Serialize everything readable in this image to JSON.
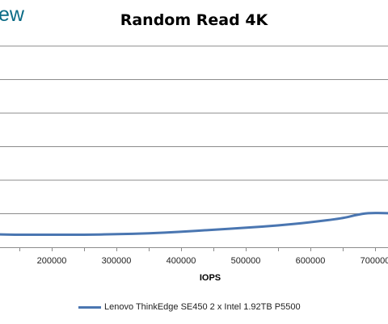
{
  "logo": {
    "text": "ew"
  },
  "chart_data": {
    "type": "line",
    "title": "Random Read 4K",
    "xlabel": "IOPS",
    "ylabel": "",
    "x_ticks": [
      "200000",
      "300000",
      "400000",
      "500000",
      "600000",
      "700000"
    ],
    "xlim": [
      120000,
      720000
    ],
    "ylim": [
      0,
      1
    ],
    "grid": true,
    "legend_position": "bottom",
    "series": [
      {
        "name": "Lenovo ThinkEdge SE450 2 x Intel 1.92TB P5500",
        "color": "#4a76b1",
        "points": [
          [
            120000,
            0.064
          ],
          [
            150000,
            0.062
          ],
          [
            200000,
            0.062
          ],
          [
            250000,
            0.062
          ],
          [
            300000,
            0.065
          ],
          [
            350000,
            0.069
          ],
          [
            400000,
            0.077
          ],
          [
            450000,
            0.087
          ],
          [
            500000,
            0.097
          ],
          [
            550000,
            0.108
          ],
          [
            600000,
            0.124
          ],
          [
            650000,
            0.144
          ],
          [
            670000,
            0.16
          ],
          [
            690000,
            0.171
          ],
          [
            720000,
            0.169
          ]
        ]
      }
    ]
  }
}
